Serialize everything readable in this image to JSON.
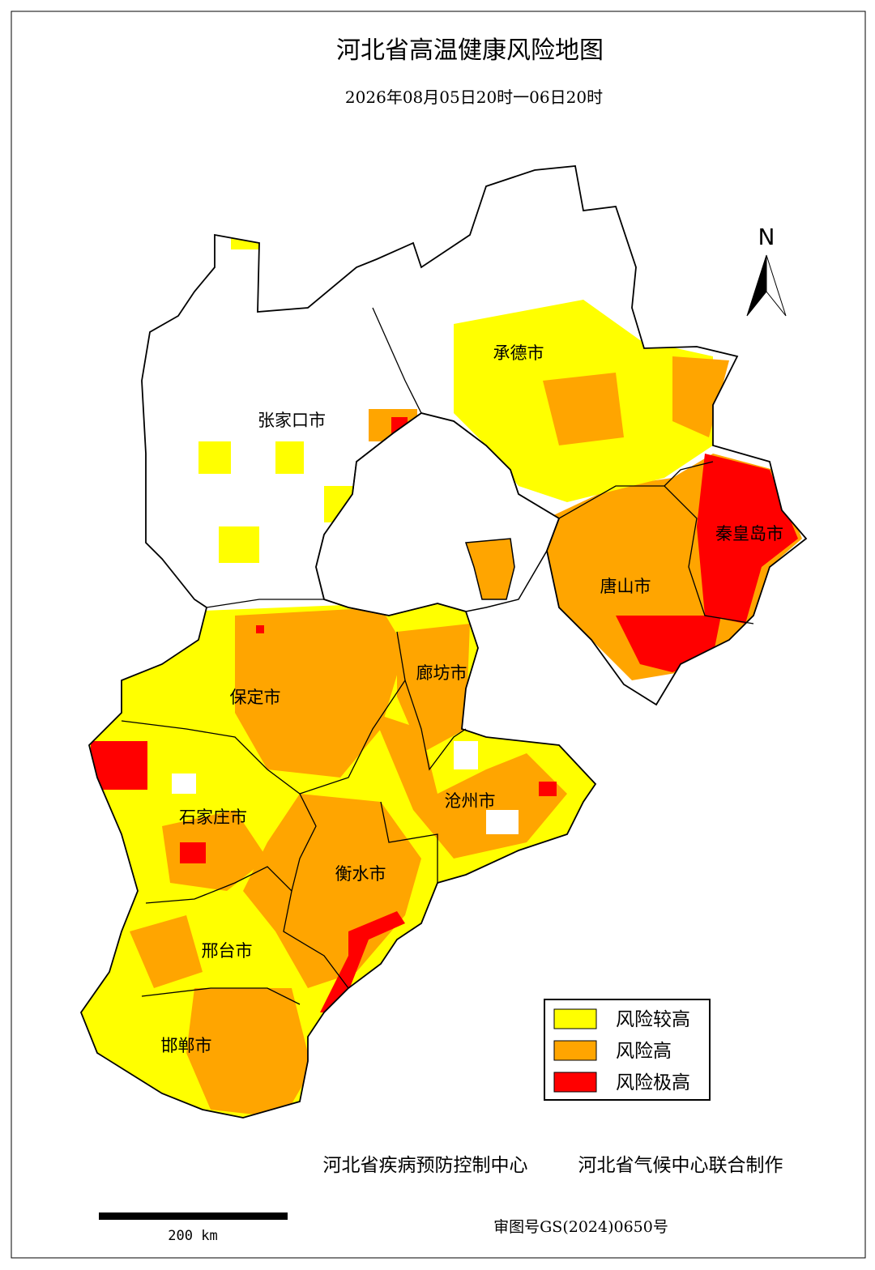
{
  "title": "河北省高温健康风险地图",
  "subtitle": "2026年08月05日20时一06日20时",
  "north": "N",
  "cities": [
    "张家口市",
    "承德市",
    "秦皇岛市",
    "唐山市",
    "廊坊市",
    "保定市",
    "沧州市",
    "石家庄市",
    "衡水市",
    "邢台市",
    "邯郸市"
  ],
  "legend": [
    {
      "name": "风险较高",
      "color": "#ffff00"
    },
    {
      "name": "风险高",
      "color": "#ffa500"
    },
    {
      "name": "风险极高",
      "color": "#ff0000"
    }
  ],
  "credits": [
    "河北省疾病预防控制中心",
    "河北省气候中心联合制作"
  ],
  "scale_label": "200 km",
  "review_number": "审图号GS(2024)0650号"
}
